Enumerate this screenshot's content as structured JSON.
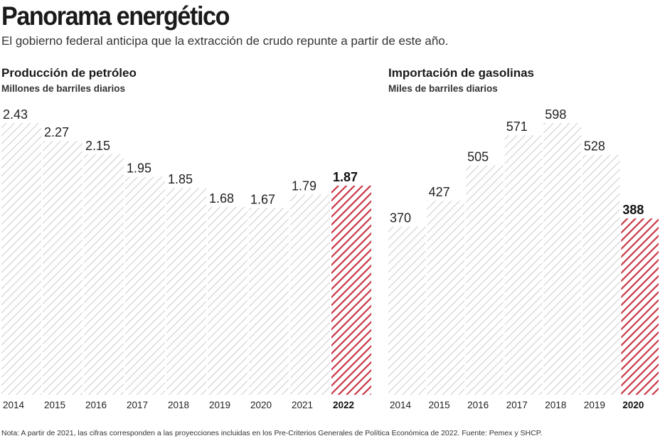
{
  "header": {
    "title": "Panorama energético",
    "subtitle": "El gobierno federal anticipa que la extracción de crudo repunte a partir de este año."
  },
  "colors": {
    "bar_hatch": "#c9c9c9",
    "highlight": "#c8303f",
    "text": "#1a1a1a"
  },
  "chart_data": [
    {
      "type": "bar",
      "title": "Producción de petróleo",
      "ylabel": "Millones de barriles diarios",
      "categories": [
        "2014",
        "2015",
        "2016",
        "2017",
        "2018",
        "2019",
        "2020",
        "2021",
        "2022"
      ],
      "values": [
        2.43,
        2.27,
        2.15,
        1.95,
        1.85,
        1.68,
        1.67,
        1.79,
        1.87
      ],
      "labels": [
        "2.43",
        "2.27",
        "2.15",
        "1.95",
        "1.85",
        "1.68",
        "1.67",
        "1.79",
        "1.87"
      ],
      "highlight_index": 8,
      "ylim": [
        0,
        2.43
      ],
      "grid": false
    },
    {
      "type": "bar",
      "title": "Importación de gasolinas",
      "ylabel": "Miles de barriles diarios",
      "categories": [
        "2014",
        "2015",
        "2016",
        "2017",
        "2018",
        "2019",
        "2020"
      ],
      "values": [
        370,
        427,
        505,
        571,
        598,
        528,
        388
      ],
      "labels": [
        "370",
        "427",
        "505",
        "571",
        "598",
        "528",
        "388"
      ],
      "highlight_index": 6,
      "ylim": [
        0,
        598
      ],
      "grid": false
    }
  ],
  "footer": {
    "note": "Nota: A partir de 2021, las cifras corresponden a las proyecciones incluidas en los Pre-Criterios Generales de Política Económica de 2022. Fuente: Pemex y SHCP."
  }
}
